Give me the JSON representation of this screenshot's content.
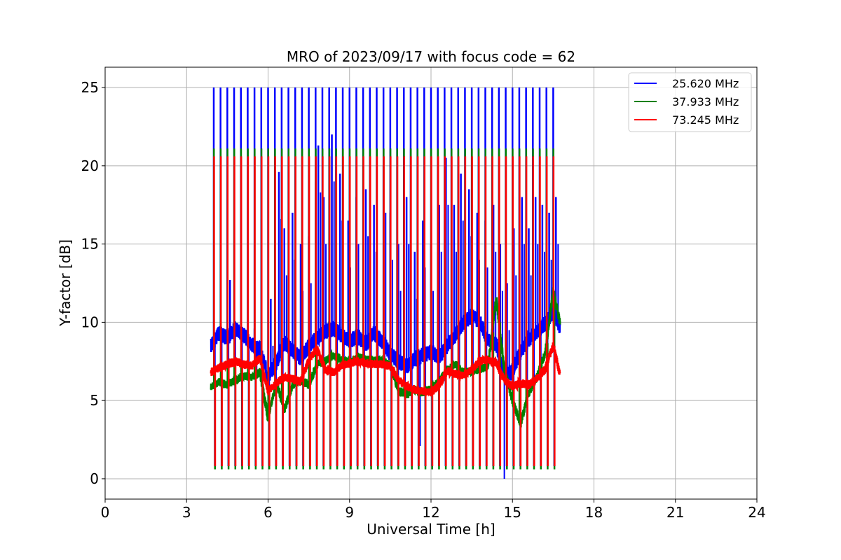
{
  "chart_data": {
    "type": "line",
    "title": "MRO of 2023/09/17 with focus code = 62",
    "xlabel": "Universal Time [h]",
    "ylabel": "Y-factor [dB]",
    "xlim": [
      0,
      24
    ],
    "ylim": [
      -1.3,
      26.3
    ],
    "xticks": [
      "0",
      "3",
      "6",
      "9",
      "12",
      "15",
      "18",
      "21",
      "24"
    ],
    "yticks": [
      "0",
      "5",
      "10",
      "15",
      "20",
      "25"
    ],
    "xtick_values": [
      0,
      3,
      6,
      9,
      12,
      15,
      18,
      21,
      24
    ],
    "ytick_values": [
      0,
      5,
      10,
      15,
      20,
      25
    ],
    "grid": true,
    "legend_position": "top-right",
    "spike_times": [
      4.0,
      4.25,
      4.5,
      4.75,
      5.0,
      5.25,
      5.5,
      5.75,
      6.0,
      6.25,
      6.5,
      6.75,
      7.0,
      7.25,
      7.5,
      7.75,
      8.0,
      8.25,
      8.5,
      8.75,
      9.0,
      9.25,
      9.5,
      9.75,
      10.0,
      10.25,
      10.5,
      10.75,
      11.0,
      11.25,
      11.5,
      11.75,
      12.0,
      12.25,
      12.5,
      12.75,
      13.0,
      13.25,
      13.5,
      13.75,
      14.0,
      14.25,
      14.5,
      14.75,
      15.0,
      15.25,
      15.5,
      15.75,
      16.0,
      16.25,
      16.5
    ],
    "series": [
      {
        "name": "25.620 MHz",
        "color": "#0000ff",
        "spike_high": 25.0,
        "spike_low": 0.8,
        "baseline": {
          "x": [
            3.9,
            4.2,
            4.5,
            4.8,
            5.1,
            5.4,
            5.7,
            6.0,
            6.3,
            6.6,
            6.9,
            7.2,
            7.5,
            7.8,
            8.1,
            8.4,
            8.7,
            9.0,
            9.3,
            9.6,
            9.9,
            10.2,
            10.5,
            10.8,
            11.1,
            11.4,
            11.7,
            12.0,
            12.3,
            12.6,
            12.9,
            13.2,
            13.5,
            13.8,
            14.1,
            14.4,
            14.7,
            15.0,
            15.3,
            15.6,
            15.9,
            16.2,
            16.5,
            16.75
          ],
          "y": [
            8.5,
            9.3,
            9.0,
            9.6,
            9.2,
            8.6,
            8.2,
            6.6,
            7.4,
            8.7,
            8.2,
            7.7,
            8.5,
            9.0,
            9.4,
            9.6,
            9.2,
            8.8,
            9.1,
            8.6,
            9.3,
            8.8,
            8.0,
            7.5,
            7.2,
            7.6,
            7.9,
            8.1,
            7.8,
            8.5,
            9.2,
            10.0,
            10.4,
            10.0,
            8.8,
            8.6,
            6.6,
            6.9,
            8.1,
            8.9,
            9.4,
            9.9,
            10.7,
            9.7
          ]
        },
        "bursts": [
          [
            4.6,
            12.7
          ],
          [
            5.5,
            9.6
          ],
          [
            6.1,
            11.5
          ],
          [
            6.4,
            19.6
          ],
          [
            6.6,
            16.0
          ],
          [
            6.9,
            17.0
          ],
          [
            7.2,
            15.0
          ],
          [
            7.5,
            15.5
          ],
          [
            7.85,
            21.3
          ],
          [
            8.05,
            18.0
          ],
          [
            8.35,
            22.0
          ],
          [
            8.65,
            19.5
          ],
          [
            8.95,
            16.5
          ],
          [
            9.25,
            18.0
          ],
          [
            9.6,
            18.5
          ],
          [
            9.9,
            17.5
          ],
          [
            10.25,
            20.0
          ],
          [
            10.5,
            17.0
          ],
          [
            10.8,
            15.0
          ],
          [
            11.1,
            18.0
          ],
          [
            11.4,
            14.5
          ],
          [
            11.7,
            16.5
          ],
          [
            12.0,
            15.0
          ],
          [
            12.3,
            17.5
          ],
          [
            12.55,
            20.5
          ],
          [
            12.85,
            17.5
          ],
          [
            13.1,
            19.5
          ],
          [
            13.4,
            18.5
          ],
          [
            13.7,
            17.0
          ],
          [
            14.0,
            16.5
          ],
          [
            14.3,
            17.5
          ],
          [
            14.55,
            15.0
          ],
          [
            14.8,
            12.5
          ],
          [
            15.05,
            16.0
          ],
          [
            15.35,
            18.0
          ],
          [
            15.6,
            16.0
          ],
          [
            15.85,
            18.0
          ],
          [
            16.1,
            17.5
          ],
          [
            16.35,
            17.0
          ],
          [
            16.6,
            18.0
          ]
        ],
        "dips": [
          [
            11.6,
            2.1
          ],
          [
            14.7,
            0.0
          ],
          [
            12.3,
            3.0
          ]
        ]
      },
      {
        "name": "37.933 MHz",
        "color": "#008000",
        "spike_high": 21.1,
        "spike_low": 0.6,
        "baseline": {
          "x": [
            3.9,
            4.2,
            4.5,
            4.8,
            5.1,
            5.4,
            5.7,
            6.0,
            6.3,
            6.6,
            6.9,
            7.2,
            7.5,
            7.8,
            8.1,
            8.4,
            8.7,
            9.0,
            9.3,
            9.6,
            9.9,
            10.2,
            10.5,
            10.8,
            11.1,
            11.4,
            11.7,
            12.0,
            12.3,
            12.6,
            12.9,
            13.2,
            13.5,
            13.8,
            14.1,
            14.4,
            14.7,
            15.0,
            15.3,
            15.6,
            15.9,
            16.2,
            16.5,
            16.75
          ],
          "y": [
            5.9,
            6.2,
            6.0,
            6.3,
            6.6,
            6.5,
            6.8,
            3.9,
            6.2,
            4.4,
            6.0,
            6.3,
            6.0,
            7.3,
            7.5,
            7.9,
            7.6,
            7.4,
            7.8,
            7.6,
            7.6,
            7.5,
            7.3,
            5.6,
            5.4,
            5.7,
            5.5,
            5.8,
            6.2,
            7.0,
            7.3,
            6.8,
            6.9,
            7.0,
            7.2,
            11.5,
            7.0,
            5.0,
            3.5,
            5.5,
            6.5,
            8.0,
            12.0,
            10.0
          ]
        }
      },
      {
        "name": "73.245 MHz",
        "color": "#ff0000",
        "spike_high": 20.6,
        "spike_low": 0.8,
        "baseline": {
          "x": [
            3.9,
            4.2,
            4.5,
            4.8,
            5.1,
            5.4,
            5.7,
            6.0,
            6.3,
            6.6,
            6.9,
            7.2,
            7.5,
            7.8,
            8.1,
            8.4,
            8.7,
            9.0,
            9.3,
            9.6,
            9.9,
            10.2,
            10.5,
            10.8,
            11.1,
            11.4,
            11.7,
            12.0,
            12.3,
            12.6,
            12.9,
            13.2,
            13.5,
            13.8,
            14.1,
            14.4,
            14.7,
            15.0,
            15.3,
            15.6,
            15.9,
            16.2,
            16.5,
            16.75
          ],
          "y": [
            6.8,
            7.1,
            7.3,
            7.5,
            7.3,
            7.2,
            7.7,
            5.6,
            6.1,
            6.5,
            6.4,
            6.2,
            7.6,
            8.3,
            7.0,
            6.8,
            7.2,
            7.4,
            7.5,
            7.4,
            7.3,
            7.3,
            7.2,
            6.3,
            5.9,
            5.7,
            5.6,
            5.5,
            6.0,
            6.9,
            6.7,
            6.6,
            7.0,
            7.5,
            7.6,
            7.4,
            6.3,
            5.9,
            6.1,
            6.0,
            6.4,
            7.0,
            8.5,
            6.7
          ]
        }
      }
    ]
  }
}
